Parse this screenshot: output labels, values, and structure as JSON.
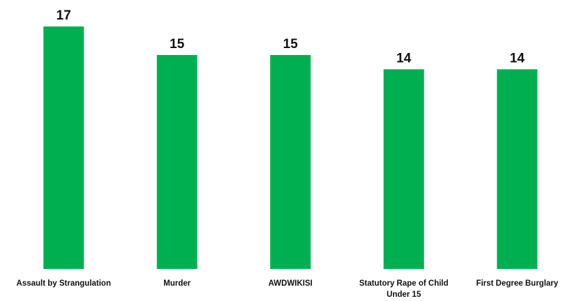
{
  "chart_data": {
    "type": "bar",
    "title": "",
    "xlabel": "",
    "ylabel": "",
    "categories": [
      "Assault by Strangulation",
      "Murder",
      "AWDWIKISI",
      "Statutory Rape of Child Under 15",
      "First Degree Burglary"
    ],
    "category_lines": [
      [
        "Assault by Strangulation"
      ],
      [
        "Murder"
      ],
      [
        "AWDWIKISI"
      ],
      [
        "Statutory Rape of Child",
        "Under 15"
      ],
      [
        "First Degree Burglary"
      ]
    ],
    "values": [
      17,
      15,
      15,
      14,
      14
    ],
    "data_labels": [
      "17",
      "15",
      "15",
      "14",
      "14"
    ],
    "ylim": [
      0,
      17
    ],
    "grid": false,
    "legend": "none",
    "bar_color": "#00b050"
  }
}
